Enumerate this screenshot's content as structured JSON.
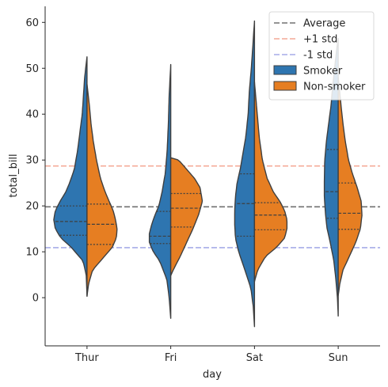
{
  "chart_data": {
    "type": "violin",
    "xlabel": "day",
    "ylabel": "total_bill",
    "categories": [
      "Thur",
      "Fri",
      "Sat",
      "Sun"
    ],
    "ylim": [
      -10.5,
      63.5
    ],
    "yticks": [
      0,
      10,
      20,
      30,
      40,
      50,
      60
    ],
    "grid": false,
    "legend_position": "top-right",
    "split": true,
    "inner": "quartile",
    "series": [
      {
        "name": "Smoker",
        "color": "#2e75b0",
        "violins": [
          {
            "category": "Thur",
            "min": 0.5,
            "max": 52.5,
            "q1": 13.6,
            "median": 16.6,
            "q3": 20.0,
            "profile": [
              [
                0.5,
                0.0
              ],
              [
                5,
                1.0
              ],
              [
                8,
                5.0
              ],
              [
                11,
                20.0
              ],
              [
                13,
                33.0
              ],
              [
                15,
                40.0
              ],
              [
                17,
                42.0
              ],
              [
                19,
                40.0
              ],
              [
                21,
                34.0
              ],
              [
                23,
                27.0
              ],
              [
                25,
                22.0
              ],
              [
                28,
                16.0
              ],
              [
                32,
                12.0
              ],
              [
                36,
                9.0
              ],
              [
                40,
                6.0
              ],
              [
                44,
                4.5
              ],
              [
                48,
                3.0
              ],
              [
                52.5,
                0.0
              ]
            ]
          },
          {
            "category": "Fri",
            "min": -4.5,
            "max": 50.8,
            "q1": 11.8,
            "median": 13.4,
            "q3": 18.8,
            "profile": [
              [
                -4.5,
                0.0
              ],
              [
                0,
                2.0
              ],
              [
                4,
                5.0
              ],
              [
                8,
                14.0
              ],
              [
                10,
                22.0
              ],
              [
                12,
                27.0
              ],
              [
                14,
                27.0
              ],
              [
                16,
                24.0
              ],
              [
                18,
                20.0
              ],
              [
                20,
                15.0
              ],
              [
                23,
                11.0
              ],
              [
                27,
                7.0
              ],
              [
                32,
                4.5
              ],
              [
                38,
                3.0
              ],
              [
                44,
                2.0
              ],
              [
                50.8,
                0.0
              ]
            ]
          },
          {
            "category": "Sat",
            "min": -6.3,
            "max": 60.3,
            "q1": 13.4,
            "median": 20.5,
            "q3": 27.0,
            "profile": [
              [
                -6.3,
                0.0
              ],
              [
                -2,
                1.5
              ],
              [
                2,
                4.5
              ],
              [
                6,
                12.0
              ],
              [
                10,
                20.0
              ],
              [
                13,
                24.0
              ],
              [
                16,
                25.0
              ],
              [
                19,
                25.0
              ],
              [
                22,
                24.0
              ],
              [
                25,
                22.0
              ],
              [
                28,
                18.0
              ],
              [
                31,
                15.0
              ],
              [
                35,
                11.0
              ],
              [
                40,
                8.0
              ],
              [
                45,
                6.5
              ],
              [
                50,
                4.0
              ],
              [
                55,
                2.0
              ],
              [
                60.3,
                0.0
              ]
            ]
          },
          {
            "category": "Sun",
            "min": -4.0,
            "max": 56.5,
            "q1": 17.3,
            "median": 23.1,
            "q3": 32.3,
            "profile": [
              [
                -4.0,
                0.0
              ],
              [
                0,
                1.0
              ],
              [
                4,
                3.0
              ],
              [
                8,
                5.5
              ],
              [
                12,
                10.0
              ],
              [
                15,
                14.0
              ],
              [
                18,
                16.0
              ],
              [
                22,
                17.5
              ],
              [
                26,
                17.5
              ],
              [
                30,
                17.0
              ],
              [
                34,
                15.0
              ],
              [
                38,
                12.0
              ],
              [
                42,
                9.0
              ],
              [
                46,
                7.0
              ],
              [
                50,
                4.5
              ],
              [
                54,
                2.0
              ],
              [
                56.5,
                0.0
              ]
            ]
          }
        ]
      },
      {
        "name": "Non-smoker",
        "color": "#e67e22",
        "violins": [
          {
            "category": "Thur",
            "min": 0.3,
            "max": 46.5,
            "q1": 11.6,
            "median": 16.0,
            "q3": 20.4,
            "profile": [
              [
                0.3,
                0.0
              ],
              [
                3,
                2.0
              ],
              [
                6,
                7.0
              ],
              [
                9,
                22.0
              ],
              [
                11,
                32.0
              ],
              [
                13,
                37.0
              ],
              [
                15,
                38.0
              ],
              [
                17,
                36.0
              ],
              [
                19,
                33.0
              ],
              [
                21,
                28.0
              ],
              [
                23,
                23.0
              ],
              [
                26,
                17.0
              ],
              [
                30,
                12.0
              ],
              [
                34,
                8.0
              ],
              [
                38,
                5.0
              ],
              [
                42,
                3.0
              ],
              [
                46.5,
                0.0
              ]
            ]
          },
          {
            "category": "Fri",
            "min": 4.8,
            "max": 30.5,
            "q1": 15.4,
            "median": 19.5,
            "q3": 22.7,
            "profile": [
              [
                4.8,
                0.0
              ],
              [
                6,
                3.0
              ],
              [
                9,
                12.0
              ],
              [
                12,
                20.0
              ],
              [
                15,
                28.0
              ],
              [
                18,
                35.0
              ],
              [
                21,
                40.0
              ],
              [
                24,
                37.0
              ],
              [
                26,
                30.0
              ],
              [
                28,
                20.0
              ],
              [
                30,
                10.0
              ],
              [
                30.5,
                0.0
              ]
            ]
          },
          {
            "category": "Sat",
            "min": 3.5,
            "max": 47.0,
            "q1": 14.8,
            "median": 18.0,
            "q3": 20.7,
            "profile": [
              [
                3.5,
                0.0
              ],
              [
                6,
                4.0
              ],
              [
                9,
                14.0
              ],
              [
                11,
                28.0
              ],
              [
                13,
                38.0
              ],
              [
                15,
                41.0
              ],
              [
                17,
                41.0
              ],
              [
                19,
                38.0
              ],
              [
                21,
                32.0
              ],
              [
                23,
                24.0
              ],
              [
                26,
                16.0
              ],
              [
                30,
                10.0
              ],
              [
                35,
                6.0
              ],
              [
                40,
                3.5
              ],
              [
                47,
                0.0
              ]
            ]
          },
          {
            "category": "Sun",
            "min": 0.5,
            "max": 48.0,
            "q1": 14.9,
            "median": 18.4,
            "q3": 25.0,
            "profile": [
              [
                0.5,
                0.0
              ],
              [
                3,
                2.0
              ],
              [
                6,
                6.0
              ],
              [
                9,
                14.0
              ],
              [
                12,
                22.0
              ],
              [
                15,
                28.0
              ],
              [
                18,
                30.0
              ],
              [
                21,
                29.0
              ],
              [
                24,
                24.0
              ],
              [
                27,
                18.0
              ],
              [
                30,
                13.0
              ],
              [
                34,
                9.0
              ],
              [
                38,
                6.0
              ],
              [
                42,
                3.5
              ],
              [
                48,
                0.0
              ]
            ]
          }
        ]
      }
    ],
    "reference_lines": [
      {
        "name": "Average",
        "value": 19.8,
        "color": "#707070",
        "style": "dashed"
      },
      {
        "name": "+1 std",
        "value": 28.7,
        "color": "#f4a896",
        "style": "dashed"
      },
      {
        "name": "-1 std",
        "value": 10.9,
        "color": "#a6ace8",
        "style": "dashed"
      }
    ],
    "legend": [
      "Average",
      "+1 std",
      "-1 std",
      "Smoker",
      "Non-smoker"
    ]
  }
}
